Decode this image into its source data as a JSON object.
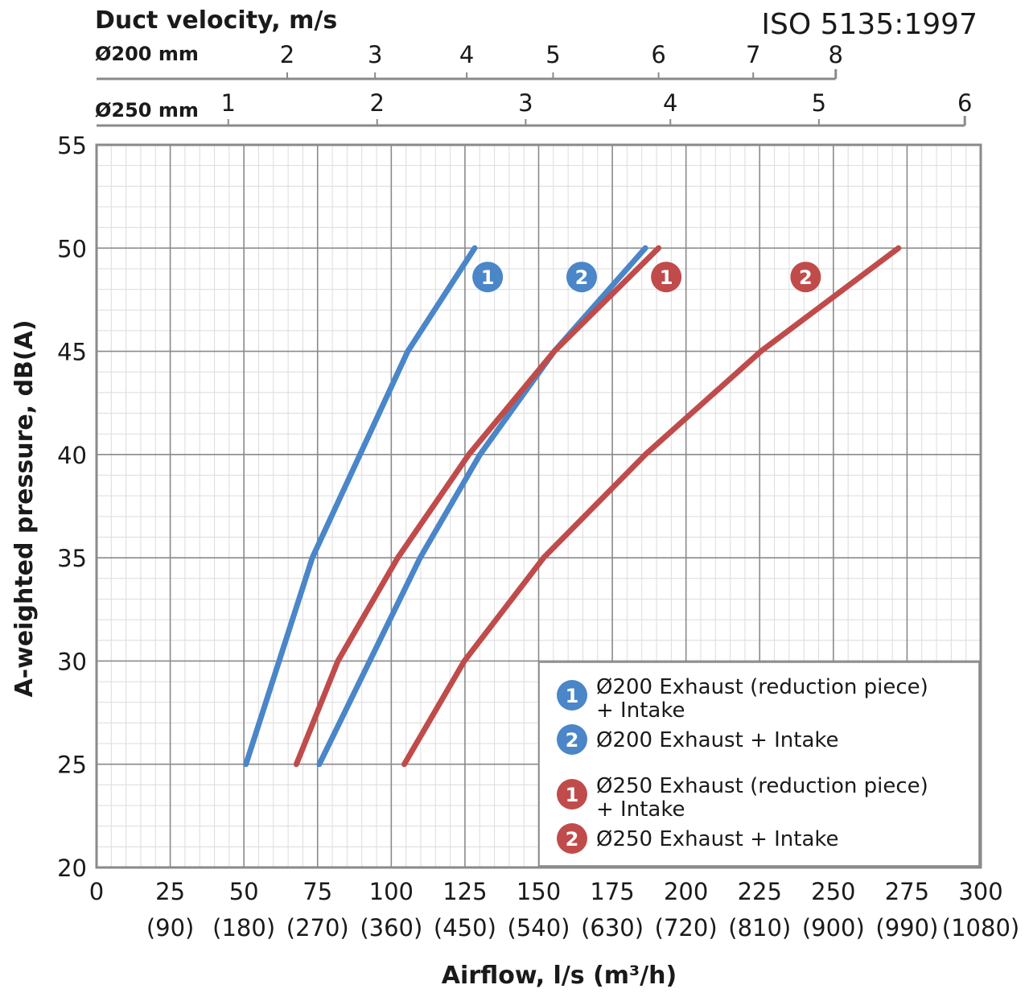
{
  "chart_data": {
    "type": "line",
    "title": "",
    "standard": "ISO 5135:1997",
    "xlabel": "Airflow, l/s (m³/h)",
    "ylabel": "A-weighted pressure, dB(A)",
    "xlim": [
      0,
      300
    ],
    "ylim": [
      20,
      55
    ],
    "grid": true,
    "x_ticks": [
      0,
      25,
      50,
      75,
      100,
      125,
      150,
      175,
      200,
      225,
      250,
      275,
      300
    ],
    "x_ticks_secondary": [
      "(90)",
      "(180)",
      "(270)",
      "(360)",
      "(450)",
      "(540)",
      "(630)",
      "(720)",
      "(810)",
      "(900)",
      "(990)",
      "(1080)"
    ],
    "y_ticks": [
      20,
      25,
      30,
      35,
      40,
      45,
      50,
      55
    ],
    "top_axis": {
      "title": "Duct velocity, m/s",
      "scales": [
        {
          "label": "Ø200 mm",
          "ticks": [
            {
              "v": "2",
              "x": 64.7
            },
            {
              "v": "3",
              "x": 94.5
            },
            {
              "v": "4",
              "x": 125.6
            },
            {
              "v": "5",
              "x": 154.9
            },
            {
              "v": "6",
              "x": 190.7
            },
            {
              "v": "7",
              "x": 222.8
            },
            {
              "v": "8",
              "x": 250.8
            }
          ]
        },
        {
          "label": "Ø250 mm",
          "ticks": [
            {
              "v": "1",
              "x": 44.7
            },
            {
              "v": "2",
              "x": 95.2
            },
            {
              "v": "3",
              "x": 145.6
            },
            {
              "v": "4",
              "x": 194.7
            },
            {
              "v": "5",
              "x": 245.1
            },
            {
              "v": "6",
              "x": 294.6
            }
          ]
        }
      ]
    },
    "series": [
      {
        "name": "Ø200 Exhaust (reduction piece) + Intake",
        "badge": "1",
        "color": "#4a86c8",
        "x": [
          50.7,
          73.2,
          105.6,
          128.3
        ],
        "y": [
          25,
          35,
          45,
          50
        ],
        "label_at": [
          132.7,
          48.6
        ]
      },
      {
        "name": "Ø200 Exhaust + Intake",
        "badge": "2",
        "color": "#4a86c8",
        "x": [
          75.6,
          109.8,
          130.1,
          155.3,
          186.2
        ],
        "y": [
          25,
          35,
          40,
          45,
          50
        ],
        "label_at": [
          164.6,
          48.6
        ]
      },
      {
        "name": "Ø250 Exhaust (reduction piece) + Intake",
        "badge": "1",
        "color": "#c04b4b",
        "x": [
          67.8,
          81.9,
          102.2,
          126.3,
          155.3,
          190.7
        ],
        "y": [
          25,
          30,
          35,
          40,
          45,
          50
        ],
        "label_at": [
          193.3,
          48.6
        ]
      },
      {
        "name": "Ø250 Exhaust + Intake",
        "badge": "2",
        "color": "#c04b4b",
        "x": [
          104.4,
          124.8,
          151.7,
          186.2,
          225.4,
          272.1
        ],
        "y": [
          25,
          30,
          35,
          40,
          45,
          50
        ],
        "label_at": [
          240.6,
          48.6
        ]
      }
    ],
    "legend": {
      "placement": "bottom-right",
      "entries": [
        {
          "badge": "1",
          "color": "#4a86c8",
          "lines": [
            "Ø200 Exhaust (reduction piece)",
            "+ Intake"
          ]
        },
        {
          "badge": "2",
          "color": "#4a86c8",
          "lines": [
            "Ø200 Exhaust + Intake"
          ]
        },
        {
          "badge": "1",
          "color": "#c04b4b",
          "lines": [
            "Ø250 Exhaust (reduction piece)",
            "+ Intake"
          ]
        },
        {
          "badge": "2",
          "color": "#c04b4b",
          "lines": [
            "Ø250 Exhaust + Intake"
          ]
        }
      ]
    }
  }
}
